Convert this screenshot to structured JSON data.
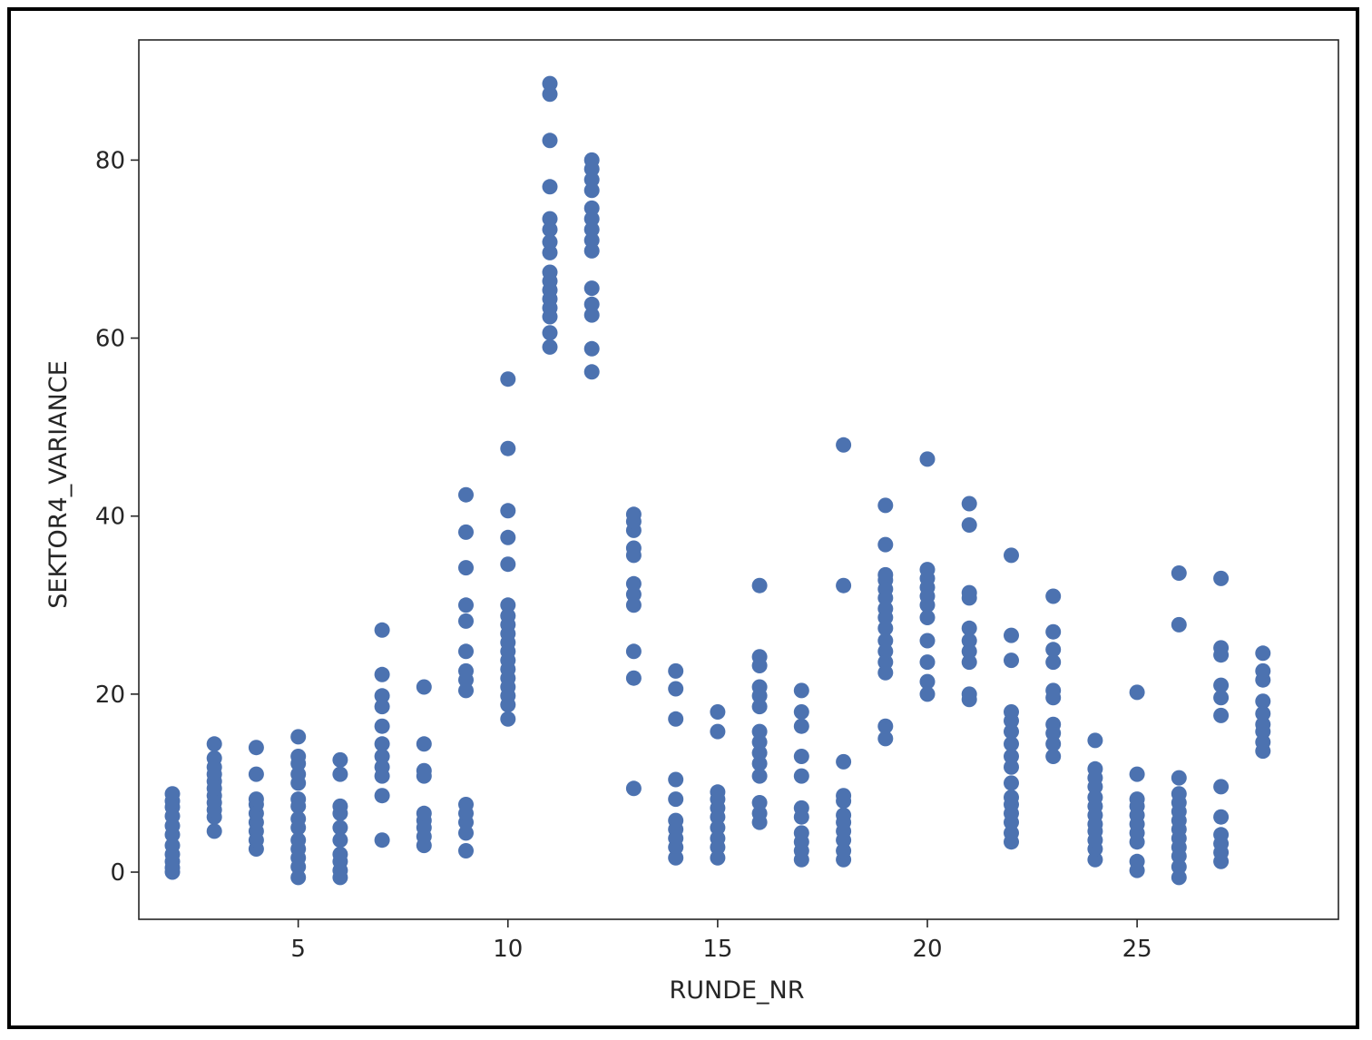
{
  "chart_data": {
    "type": "scatter",
    "title": "",
    "xlabel": "RUNDE_NR",
    "ylabel": "SEKTOR4_VARIANCE",
    "xlim": [
      1.2,
      29.8
    ],
    "ylim": [
      -5.3,
      93.5
    ],
    "xticks": [
      5,
      10,
      15,
      20,
      25
    ],
    "yticks": [
      0,
      20,
      40,
      60,
      80
    ],
    "grid": false,
    "marker_color": "#4c72b0",
    "series": [
      {
        "points": [
          [
            2,
            0
          ],
          [
            2,
            0.5
          ],
          [
            2,
            1.2
          ],
          [
            2,
            2.0
          ],
          [
            2,
            3.0
          ],
          [
            2,
            4.2
          ],
          [
            2,
            5.2
          ],
          [
            2,
            6.3
          ],
          [
            2,
            7.3
          ],
          [
            2,
            8.0
          ],
          [
            2,
            8.8
          ],
          [
            3,
            4.6
          ],
          [
            3,
            6.2
          ],
          [
            3,
            7.0
          ],
          [
            3,
            7.8
          ],
          [
            3,
            8.6
          ],
          [
            3,
            9.4
          ],
          [
            3,
            10.2
          ],
          [
            3,
            11.0
          ],
          [
            3,
            11.8
          ],
          [
            3,
            12.8
          ],
          [
            3,
            14.4
          ],
          [
            4,
            2.6
          ],
          [
            4,
            3.6
          ],
          [
            4,
            4.6
          ],
          [
            4,
            5.6
          ],
          [
            4,
            6.6
          ],
          [
            4,
            7.6
          ],
          [
            4,
            8.2
          ],
          [
            4,
            11.0
          ],
          [
            4,
            14.0
          ],
          [
            5,
            -0.6
          ],
          [
            5,
            0.6
          ],
          [
            5,
            1.6
          ],
          [
            5,
            2.6
          ],
          [
            5,
            3.6
          ],
          [
            5,
            5.0
          ],
          [
            5,
            6.0
          ],
          [
            5,
            7.4
          ],
          [
            5,
            8.2
          ],
          [
            5,
            10.0
          ],
          [
            5,
            11.0
          ],
          [
            5,
            12.2
          ],
          [
            5,
            13.0
          ],
          [
            5,
            15.2
          ],
          [
            6,
            -0.6
          ],
          [
            6,
            0.2
          ],
          [
            6,
            1.2
          ],
          [
            6,
            2.0
          ],
          [
            6,
            3.6
          ],
          [
            6,
            5.0
          ],
          [
            6,
            6.6
          ],
          [
            6,
            7.4
          ],
          [
            6,
            11.0
          ],
          [
            6,
            12.6
          ],
          [
            7,
            3.6
          ],
          [
            7,
            8.6
          ],
          [
            7,
            10.8
          ],
          [
            7,
            11.8
          ],
          [
            7,
            13.0
          ],
          [
            7,
            14.4
          ],
          [
            7,
            16.4
          ],
          [
            7,
            18.6
          ],
          [
            7,
            19.8
          ],
          [
            7,
            22.2
          ],
          [
            7,
            27.2
          ],
          [
            8,
            3.0
          ],
          [
            8,
            4.0
          ],
          [
            8,
            5.0
          ],
          [
            8,
            5.8
          ],
          [
            8,
            6.6
          ],
          [
            8,
            10.8
          ],
          [
            8,
            11.4
          ],
          [
            8,
            14.4
          ],
          [
            8,
            20.8
          ],
          [
            9,
            2.4
          ],
          [
            9,
            4.4
          ],
          [
            9,
            5.6
          ],
          [
            9,
            6.6
          ],
          [
            9,
            7.6
          ],
          [
            9,
            20.4
          ],
          [
            9,
            21.6
          ],
          [
            9,
            22.6
          ],
          [
            9,
            24.8
          ],
          [
            9,
            28.2
          ],
          [
            9,
            30.0
          ],
          [
            9,
            34.2
          ],
          [
            9,
            38.2
          ],
          [
            9,
            42.4
          ],
          [
            10,
            17.2
          ],
          [
            10,
            18.8
          ],
          [
            10,
            19.8
          ],
          [
            10,
            20.8
          ],
          [
            10,
            21.8
          ],
          [
            10,
            22.8
          ],
          [
            10,
            23.8
          ],
          [
            10,
            24.8
          ],
          [
            10,
            25.8
          ],
          [
            10,
            26.8
          ],
          [
            10,
            27.8
          ],
          [
            10,
            28.8
          ],
          [
            10,
            30.0
          ],
          [
            10,
            34.6
          ],
          [
            10,
            37.6
          ],
          [
            10,
            40.6
          ],
          [
            10,
            47.6
          ],
          [
            10,
            55.4
          ],
          [
            11,
            59.0
          ],
          [
            11,
            60.6
          ],
          [
            11,
            62.4
          ],
          [
            11,
            63.4
          ],
          [
            11,
            64.4
          ],
          [
            11,
            65.4
          ],
          [
            11,
            66.4
          ],
          [
            11,
            67.4
          ],
          [
            11,
            69.6
          ],
          [
            11,
            70.8
          ],
          [
            11,
            72.2
          ],
          [
            11,
            73.4
          ],
          [
            11,
            77.0
          ],
          [
            11,
            82.2
          ],
          [
            11,
            87.4
          ],
          [
            11,
            88.6
          ],
          [
            12,
            56.2
          ],
          [
            12,
            58.8
          ],
          [
            12,
            62.6
          ],
          [
            12,
            63.8
          ],
          [
            12,
            65.6
          ],
          [
            12,
            69.8
          ],
          [
            12,
            71.0
          ],
          [
            12,
            72.2
          ],
          [
            12,
            73.4
          ],
          [
            12,
            74.6
          ],
          [
            12,
            76.6
          ],
          [
            12,
            77.8
          ],
          [
            12,
            79.0
          ],
          [
            12,
            80.0
          ],
          [
            13,
            9.4
          ],
          [
            13,
            21.8
          ],
          [
            13,
            24.8
          ],
          [
            13,
            30.0
          ],
          [
            13,
            31.2
          ],
          [
            13,
            32.4
          ],
          [
            13,
            35.6
          ],
          [
            13,
            36.4
          ],
          [
            13,
            38.4
          ],
          [
            13,
            39.4
          ],
          [
            13,
            40.2
          ],
          [
            14,
            1.6
          ],
          [
            14,
            2.8
          ],
          [
            14,
            3.8
          ],
          [
            14,
            4.8
          ],
          [
            14,
            5.8
          ],
          [
            14,
            8.2
          ],
          [
            14,
            10.4
          ],
          [
            14,
            17.2
          ],
          [
            14,
            20.6
          ],
          [
            14,
            22.6
          ],
          [
            15,
            1.6
          ],
          [
            15,
            2.8
          ],
          [
            15,
            3.8
          ],
          [
            15,
            5.0
          ],
          [
            15,
            6.2
          ],
          [
            15,
            7.2
          ],
          [
            15,
            8.2
          ],
          [
            15,
            9.0
          ],
          [
            15,
            15.8
          ],
          [
            15,
            18.0
          ],
          [
            16,
            5.6
          ],
          [
            16,
            6.6
          ],
          [
            16,
            7.8
          ],
          [
            16,
            10.8
          ],
          [
            16,
            12.2
          ],
          [
            16,
            13.4
          ],
          [
            16,
            14.6
          ],
          [
            16,
            15.8
          ],
          [
            16,
            18.6
          ],
          [
            16,
            19.8
          ],
          [
            16,
            20.8
          ],
          [
            16,
            23.2
          ],
          [
            16,
            24.2
          ],
          [
            16,
            32.2
          ],
          [
            17,
            1.4
          ],
          [
            17,
            2.4
          ],
          [
            17,
            3.4
          ],
          [
            17,
            4.4
          ],
          [
            17,
            6.2
          ],
          [
            17,
            7.2
          ],
          [
            17,
            10.8
          ],
          [
            17,
            13.0
          ],
          [
            17,
            16.4
          ],
          [
            17,
            18.0
          ],
          [
            17,
            20.4
          ],
          [
            18,
            1.4
          ],
          [
            18,
            2.4
          ],
          [
            18,
            3.6
          ],
          [
            18,
            4.6
          ],
          [
            18,
            5.6
          ],
          [
            18,
            6.4
          ],
          [
            18,
            8.0
          ],
          [
            18,
            8.6
          ],
          [
            18,
            12.4
          ],
          [
            18,
            32.2
          ],
          [
            18,
            48.0
          ],
          [
            19,
            15.0
          ],
          [
            19,
            16.4
          ],
          [
            19,
            22.4
          ],
          [
            19,
            23.6
          ],
          [
            19,
            24.8
          ],
          [
            19,
            26.0
          ],
          [
            19,
            27.4
          ],
          [
            19,
            28.6
          ],
          [
            19,
            29.6
          ],
          [
            19,
            30.8
          ],
          [
            19,
            31.8
          ],
          [
            19,
            32.8
          ],
          [
            19,
            33.4
          ],
          [
            19,
            36.8
          ],
          [
            19,
            41.2
          ],
          [
            20,
            20.0
          ],
          [
            20,
            21.4
          ],
          [
            20,
            23.6
          ],
          [
            20,
            26.0
          ],
          [
            20,
            28.6
          ],
          [
            20,
            30.0
          ],
          [
            20,
            31.0
          ],
          [
            20,
            32.0
          ],
          [
            20,
            33.0
          ],
          [
            20,
            34.0
          ],
          [
            20,
            46.4
          ],
          [
            21,
            19.4
          ],
          [
            21,
            20.0
          ],
          [
            21,
            23.6
          ],
          [
            21,
            24.8
          ],
          [
            21,
            26.0
          ],
          [
            21,
            27.4
          ],
          [
            21,
            30.8
          ],
          [
            21,
            31.4
          ],
          [
            21,
            39.0
          ],
          [
            21,
            41.4
          ],
          [
            22,
            3.4
          ],
          [
            22,
            4.4
          ],
          [
            22,
            5.6
          ],
          [
            22,
            6.6
          ],
          [
            22,
            7.6
          ],
          [
            22,
            8.4
          ],
          [
            22,
            10.0
          ],
          [
            22,
            11.8
          ],
          [
            22,
            13.0
          ],
          [
            22,
            14.4
          ],
          [
            22,
            15.8
          ],
          [
            22,
            17.0
          ],
          [
            22,
            18.0
          ],
          [
            22,
            23.8
          ],
          [
            22,
            26.6
          ],
          [
            22,
            35.6
          ],
          [
            23,
            13.0
          ],
          [
            23,
            14.4
          ],
          [
            23,
            15.6
          ],
          [
            23,
            16.6
          ],
          [
            23,
            19.6
          ],
          [
            23,
            20.4
          ],
          [
            23,
            23.6
          ],
          [
            23,
            25.0
          ],
          [
            23,
            27.0
          ],
          [
            23,
            31.0
          ],
          [
            24,
            1.4
          ],
          [
            24,
            2.6
          ],
          [
            24,
            3.6
          ],
          [
            24,
            4.6
          ],
          [
            24,
            5.4
          ],
          [
            24,
            6.4
          ],
          [
            24,
            7.4
          ],
          [
            24,
            8.4
          ],
          [
            24,
            9.6
          ],
          [
            24,
            10.6
          ],
          [
            24,
            11.6
          ],
          [
            24,
            14.8
          ],
          [
            25,
            0.2
          ],
          [
            25,
            1.2
          ],
          [
            25,
            3.4
          ],
          [
            25,
            4.4
          ],
          [
            25,
            5.4
          ],
          [
            25,
            6.4
          ],
          [
            25,
            7.4
          ],
          [
            25,
            8.2
          ],
          [
            25,
            11.0
          ],
          [
            25,
            20.2
          ],
          [
            26,
            -0.6
          ],
          [
            26,
            0.6
          ],
          [
            26,
            1.8
          ],
          [
            26,
            2.8
          ],
          [
            26,
            3.8
          ],
          [
            26,
            4.8
          ],
          [
            26,
            5.8
          ],
          [
            26,
            6.8
          ],
          [
            26,
            7.8
          ],
          [
            26,
            8.8
          ],
          [
            26,
            10.6
          ],
          [
            26,
            27.8
          ],
          [
            26,
            33.6
          ],
          [
            27,
            1.2
          ],
          [
            27,
            2.2
          ],
          [
            27,
            3.2
          ],
          [
            27,
            4.2
          ],
          [
            27,
            6.2
          ],
          [
            27,
            9.6
          ],
          [
            27,
            17.6
          ],
          [
            27,
            19.6
          ],
          [
            27,
            21.0
          ],
          [
            27,
            24.4
          ],
          [
            27,
            25.2
          ],
          [
            27,
            33.0
          ],
          [
            28,
            13.6
          ],
          [
            28,
            14.6
          ],
          [
            28,
            15.8
          ],
          [
            28,
            16.6
          ],
          [
            28,
            17.8
          ],
          [
            28,
            19.2
          ],
          [
            28,
            21.6
          ],
          [
            28,
            22.6
          ],
          [
            28,
            24.6
          ]
        ]
      }
    ]
  }
}
